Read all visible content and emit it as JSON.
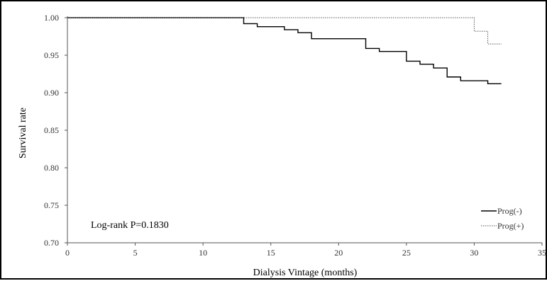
{
  "chart_data": {
    "type": "line",
    "step": true,
    "xlabel": "Dialysis Vintage (months)",
    "ylabel": "Survival rate",
    "xlim": [
      0,
      35
    ],
    "ylim": [
      0.7,
      1.0
    ],
    "x_ticks": [
      "0",
      "5",
      "10",
      "15",
      "20",
      "25",
      "30",
      "35"
    ],
    "y_ticks": [
      "0.70",
      "0.75",
      "0.80",
      "0.85",
      "0.90",
      "0.95",
      "1.00"
    ],
    "grid": false,
    "legend_position": "bottom-right",
    "annotation": "Log-rank P=0.1830",
    "series": [
      {
        "name": "Prog(-)",
        "style": "solid",
        "color": "#000000",
        "points": [
          [
            0,
            1.0
          ],
          [
            13,
            0.992
          ],
          [
            14,
            0.988
          ],
          [
            16,
            0.984
          ],
          [
            17,
            0.98
          ],
          [
            18,
            0.972
          ],
          [
            22,
            0.959
          ],
          [
            23,
            0.955
          ],
          [
            25,
            0.942
          ],
          [
            26,
            0.938
          ],
          [
            27,
            0.933
          ],
          [
            28,
            0.921
          ],
          [
            29,
            0.916
          ],
          [
            31,
            0.912
          ],
          [
            32,
            0.912
          ]
        ]
      },
      {
        "name": "Prog(+)",
        "style": "dotted",
        "color": "#555555",
        "points": [
          [
            0,
            1.0
          ],
          [
            30,
            0.982
          ],
          [
            31,
            0.965
          ],
          [
            32,
            0.965
          ]
        ]
      }
    ]
  }
}
